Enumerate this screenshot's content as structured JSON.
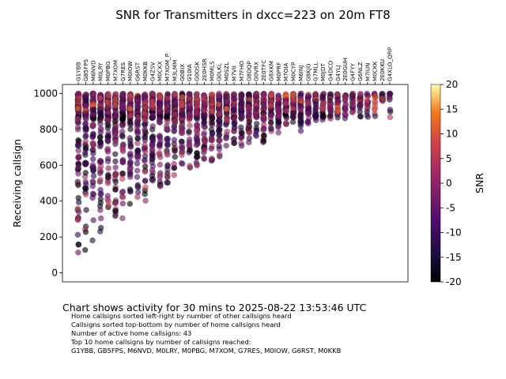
{
  "chart_data": {
    "type": "scatter",
    "title": "SNR for Transmitters in dxcc=223 on 20m FT8",
    "ylabel": "Receiving callsign",
    "xlabel": "",
    "ylim": [
      -50,
      1050
    ],
    "yticks": [
      0,
      200,
      400,
      600,
      800,
      1000
    ],
    "categories": [
      "G1YBB",
      "GB5FPS",
      "M6NVD",
      "M0LRY",
      "M0PBG",
      "M7XOM",
      "G7RES",
      "M0IOW",
      "G6RST",
      "M0KKB",
      "G4ZSV",
      "M0CKX",
      "M7XOM_P",
      "M3LMM",
      "G0BIX",
      "G10IA",
      "G0OSK",
      "2E0HSR",
      "M0MLS",
      "G0LKL",
      "M0SZL",
      "M7VII",
      "M7FHO",
      "G8DQP",
      "G0VRX",
      "2E0TFC",
      "G8XKM",
      "M0PRF",
      "M7OIA",
      "M0CYP",
      "M6INJ",
      "G8KJG",
      "G7MLL",
      "M0JDT",
      "G4DCD",
      "G4YLJ",
      "2E0GUH",
      "G4FYY",
      "G6NLZ",
      "M7IUN",
      "M0CKK",
      "2E0KKU",
      "G4XLO_QRP"
    ],
    "colorbar": {
      "label": "SNR",
      "min": -20,
      "max": 20,
      "ticks": [
        -20,
        -15,
        -10,
        -5,
        0,
        5,
        10,
        15,
        20
      ]
    },
    "grid": false
  },
  "caption": "Chart shows activity for 30 mins to 2025-08-22 13:53:46 UTC",
  "notes": [
    "Home callsigns sorted left-right by number of other callsigns heard",
    "Callsigns sorted top-bottom by number of home callsigns heard",
    "Number of active home callsigns: 43",
    "Top 10 home callsigns by number of callsigns reached:",
    "G1YBB, GB5FPS, M6NVD, M0LRY, M0PBG, M7XOM, G7RES, M0IOW, G6RST, M0KKB"
  ]
}
